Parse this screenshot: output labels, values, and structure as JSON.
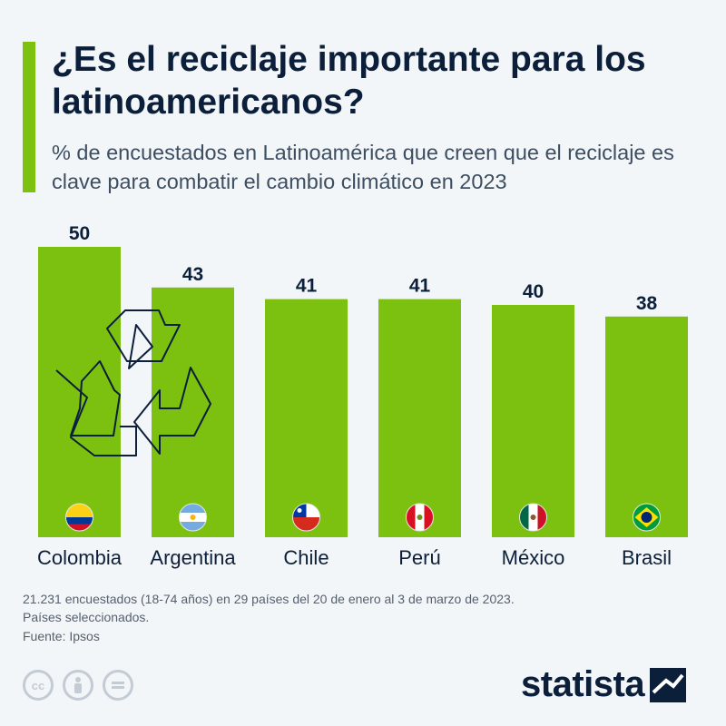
{
  "header": {
    "title": "¿Es el reciclaje importante para los latinoamericanos?",
    "subtitle": "% de encuestados en Latinoamérica que creen que el reciclaje es clave para combatir el cambio climático en 2023"
  },
  "footer": {
    "note_line1": "21.231 encuestados (18-74 años) en 29 países del 20 de enero al 3 de marzo de 2023.",
    "note_line2": "Países seleccionados.",
    "source": "Fuente: Ipsos",
    "brand": "statista",
    "license_icons": [
      "cc-icon",
      "by-icon",
      "nd-icon"
    ]
  },
  "colors": {
    "bar": "#7cc110",
    "text": "#0c1f3a",
    "background": "#f3f6f9"
  },
  "chart_data": {
    "type": "bar",
    "title": "¿Es el reciclaje importante para los latinoamericanos?",
    "ylabel": "",
    "xlabel": "",
    "categories": [
      "Colombia",
      "Argentina",
      "Chile",
      "Perú",
      "México",
      "Brasil"
    ],
    "values": [
      50,
      43,
      41,
      41,
      40,
      38
    ],
    "flags": [
      "flag-colombia",
      "flag-argentina",
      "flag-chile",
      "flag-peru",
      "flag-mexico",
      "flag-brasil"
    ],
    "ylim": [
      0,
      50
    ],
    "grid": false,
    "data_labels": true
  }
}
